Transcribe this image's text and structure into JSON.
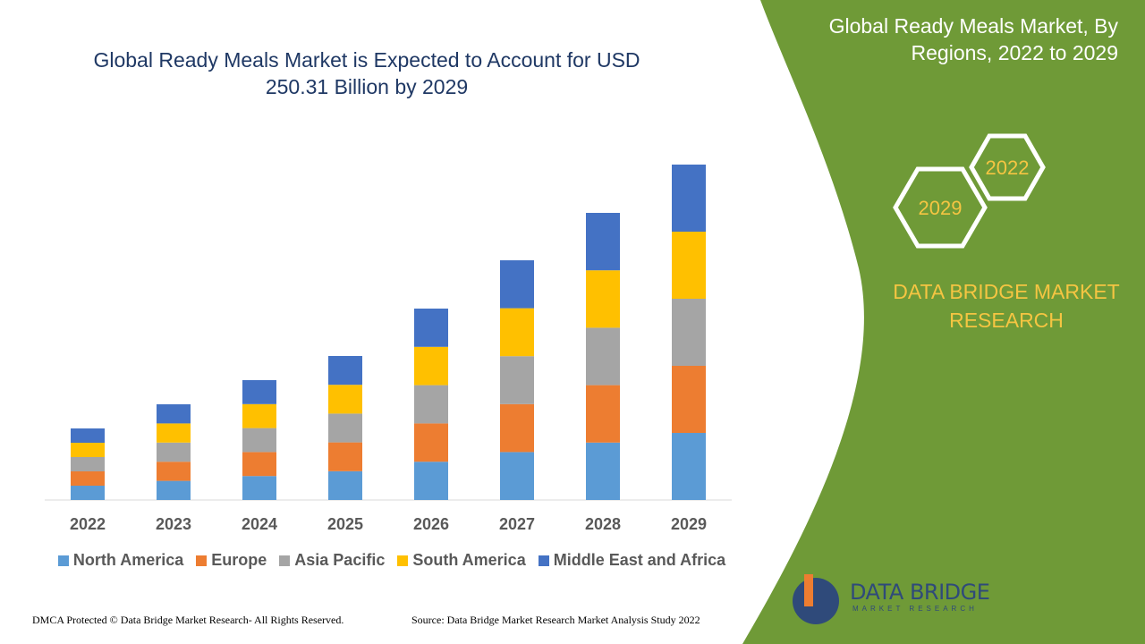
{
  "chart_data": {
    "type": "bar",
    "stacked": true,
    "title": "Global Ready Meals Market is Expected to Account for USD 250.31 Billion by 2029",
    "categories": [
      "2022",
      "2023",
      "2024",
      "2025",
      "2026",
      "2027",
      "2028",
      "2029"
    ],
    "series": [
      {
        "name": "North America",
        "color": "#5b9bd5",
        "values": [
          16,
          21.4,
          26.8,
          32.2,
          42.8,
          53.6,
          64.2,
          75
        ]
      },
      {
        "name": "Europe",
        "color": "#ed7d31",
        "values": [
          16,
          21.4,
          26.8,
          32.2,
          42.8,
          53.6,
          64.2,
          75
        ]
      },
      {
        "name": "Asia Pacific",
        "color": "#a5a5a5",
        "values": [
          16,
          21.4,
          26.8,
          32.2,
          42.8,
          53.6,
          64.2,
          75
        ]
      },
      {
        "name": "South America",
        "color": "#ffc000",
        "values": [
          16,
          21.4,
          26.8,
          32.2,
          42.8,
          53.6,
          64.2,
          75
        ]
      },
      {
        "name": "Middle East and Africa",
        "color": "#4472c4",
        "values": [
          16,
          21.4,
          26.8,
          32.2,
          42.8,
          53.6,
          64.2,
          75
        ]
      }
    ],
    "legend": "bottom"
  },
  "side_panel": {
    "title": "Global Ready Meals Market, By Regions, 2022 to 2029",
    "hex_start": "2022",
    "hex_end": "2029",
    "brand": "DATA BRIDGE MARKET RESEARCH"
  },
  "footer": {
    "copyright": "DMCA Protected © Data Bridge Market Research- All Rights Reserved.",
    "source": "Source: Data Bridge Market Research Market Analysis Study 2022"
  },
  "logo": {
    "name": "DATA BRIDGE",
    "tagline": "MARKET RESEARCH"
  }
}
